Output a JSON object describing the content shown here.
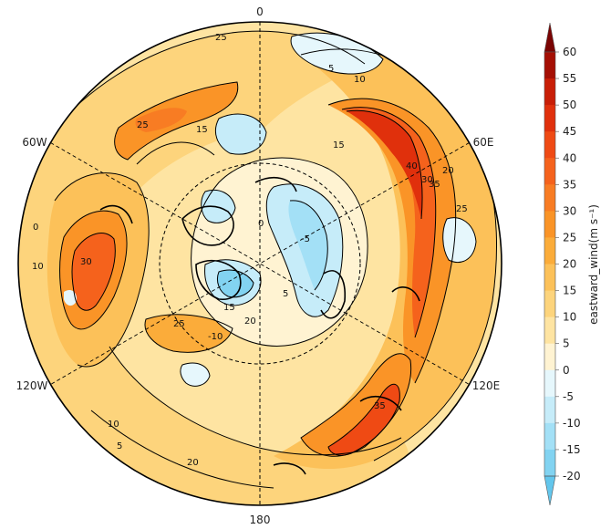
{
  "map": {
    "projection": "north-polar-stereographic",
    "longitude_labels": [
      {
        "name": "lon-label-0",
        "text": "0"
      },
      {
        "name": "lon-label-60e",
        "text": "60E"
      },
      {
        "name": "lon-label-120e",
        "text": "120E"
      },
      {
        "name": "lon-label-180",
        "text": "180"
      },
      {
        "name": "lon-label-120w",
        "text": "120W"
      },
      {
        "name": "lon-label-60w",
        "text": "60W"
      }
    ],
    "graticule": "dashed",
    "contour_labels": [
      "25",
      "5",
      "10",
      "15",
      "20",
      "25",
      "30",
      "35",
      "40",
      "0",
      "-5",
      "-10",
      "5",
      "15",
      "20",
      "25",
      "10",
      "15",
      "25",
      "30",
      "35",
      "20",
      "10",
      "5",
      "0"
    ]
  },
  "colorbar": {
    "title": "eastward_wind(m s⁻¹)",
    "ticks": [
      "60",
      "55",
      "50",
      "45",
      "40",
      "35",
      "30",
      "25",
      "20",
      "15",
      "10",
      "5",
      "0",
      "-5",
      "-10",
      "-15",
      "-20"
    ],
    "levels": [
      {
        "from": 60,
        "to": 65,
        "color": "#7a0403"
      },
      {
        "from": 55,
        "to": 60,
        "color": "#a50f04"
      },
      {
        "from": 50,
        "to": 55,
        "color": "#c81e07"
      },
      {
        "from": 45,
        "to": 50,
        "color": "#e0300c"
      },
      {
        "from": 40,
        "to": 45,
        "color": "#ef4a14"
      },
      {
        "from": 35,
        "to": 40,
        "color": "#f5621c"
      },
      {
        "from": 30,
        "to": 35,
        "color": "#f87c23"
      },
      {
        "from": 25,
        "to": 30,
        "color": "#fa9427"
      },
      {
        "from": 20,
        "to": 25,
        "color": "#fbac3a"
      },
      {
        "from": 15,
        "to": 20,
        "color": "#fcc159"
      },
      {
        "from": 10,
        "to": 15,
        "color": "#fdd47c"
      },
      {
        "from": 5,
        "to": 10,
        "color": "#fee4a2"
      },
      {
        "from": 0,
        "to": 5,
        "color": "#fff3d2"
      },
      {
        "from": -5,
        "to": 0,
        "color": "#e6f7fc"
      },
      {
        "from": -10,
        "to": -5,
        "color": "#c6ecf9"
      },
      {
        "from": -15,
        "to": -10,
        "color": "#a3e0f6"
      },
      {
        "from": -20,
        "to": -15,
        "color": "#82d3f1"
      },
      {
        "from": -25,
        "to": -20,
        "color": "#63c6ec"
      }
    ]
  }
}
